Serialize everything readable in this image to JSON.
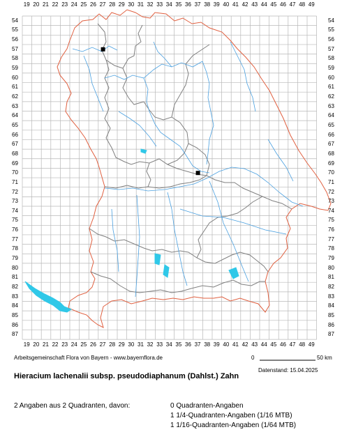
{
  "map": {
    "x_labels": [
      "19",
      "20",
      "21",
      "22",
      "23",
      "24",
      "25",
      "26",
      "27",
      "28",
      "29",
      "30",
      "31",
      "32",
      "33",
      "34",
      "35",
      "36",
      "37",
      "38",
      "39",
      "40",
      "41",
      "42",
      "43",
      "44",
      "45",
      "46",
      "47",
      "48",
      "49"
    ],
    "y_labels": [
      "54",
      "55",
      "56",
      "57",
      "58",
      "59",
      "60",
      "61",
      "62",
      "63",
      "64",
      "65",
      "66",
      "67",
      "68",
      "69",
      "70",
      "71",
      "72",
      "73",
      "74",
      "75",
      "76",
      "77",
      "78",
      "79",
      "80",
      "81",
      "82",
      "83",
      "84",
      "85",
      "86",
      "87"
    ],
    "colors": {
      "grid": "#b8b8b8",
      "outer_border": "#e06040",
      "district_border": "#808080",
      "rivers": "#4aa0e0",
      "lakes": "#30c8e8",
      "records": "#000000"
    },
    "records": [
      {
        "x": 27,
        "y": 57
      },
      {
        "x": 37,
        "y": 70
      }
    ]
  },
  "footer": {
    "credit": "Arbeitsgemeinschaft Flora von Bayern - www.bayernflora.de",
    "scale_zero": "0",
    "scale_end": "50 km",
    "datestand": "Datenstand: 15.04.2025",
    "species": "Hieracium lachenalii subsp. pseudodiaphanum (Dahlst.) Zahn",
    "summary": "2 Angaben aus 2 Quadranten, davon:",
    "counts": [
      "0 Quadranten-Angaben",
      "1 1/4-Quadranten-Angaben (1/16 MTB)",
      "1 1/16-Quadranten-Angaben (1/64 MTB)"
    ]
  }
}
